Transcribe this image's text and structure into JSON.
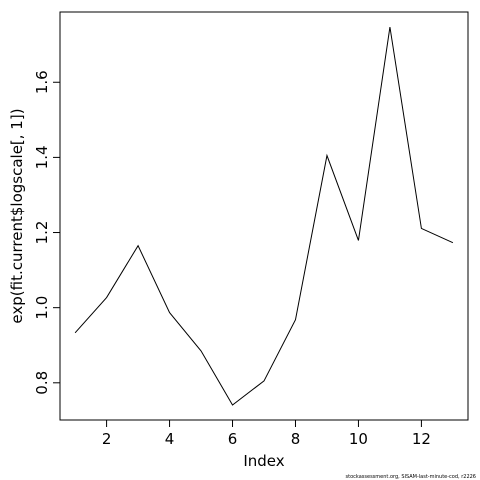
{
  "chart_data": {
    "type": "line",
    "x": [
      1,
      2,
      3,
      4,
      5,
      6,
      7,
      8,
      9,
      10,
      11,
      12,
      13
    ],
    "series": [
      {
        "color": "#000000",
        "values": [
          0.933,
          1.027,
          1.165,
          0.987,
          0.885,
          0.741,
          0.805,
          0.968,
          1.405,
          1.179,
          1.747,
          1.211,
          1.173
        ]
      }
    ],
    "xlim": [
      0.52,
      13.48
    ],
    "xticks": [
      2,
      4,
      6,
      8,
      10,
      12
    ],
    "ylim": [
      0.701,
      1.787
    ],
    "yticks": [
      0.8,
      {
        "value": 1.0,
        "label": "1.0"
      },
      1.2,
      1.4,
      1.6
    ],
    "xlabel": "Index",
    "ylabel": "exp(fit.current$logscale[, 1])",
    "footer": "stockassessment.org, SISAM-last-minute-cod, r2226"
  }
}
